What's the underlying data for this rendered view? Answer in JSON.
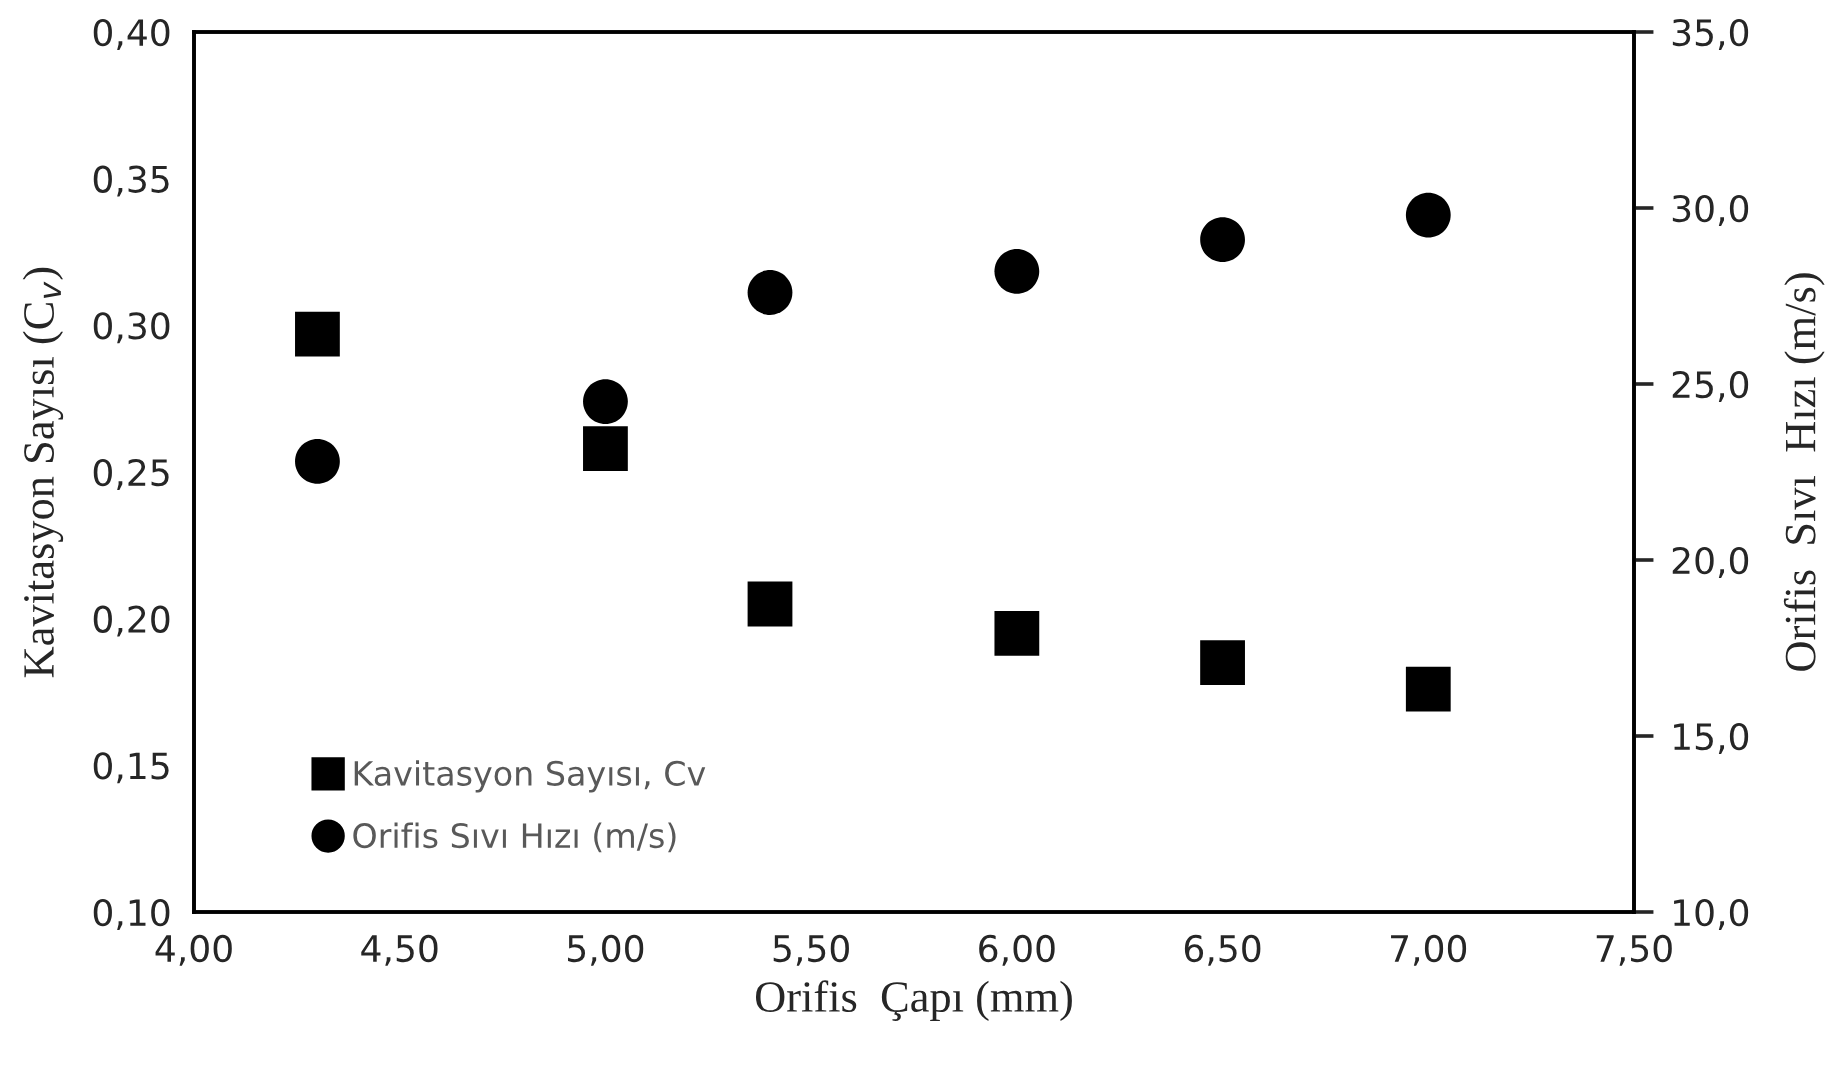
{
  "chart_data": {
    "type": "scatter",
    "xlabel": "Orifis  Çapı (mm)",
    "ylabel": "Kavitasyon Sayısı (C$_{v}$)",
    "y2label": "Orifis  Sıvı  Hızı (m/s)",
    "x": [
      4.3,
      5.0,
      5.4,
      6.0,
      6.5,
      7.0
    ],
    "series": [
      {
        "name": "Kavitasyon Sayısı, Cv",
        "color": "#000000",
        "marker": "square",
        "values": [
          0.297,
          0.258,
          0.205,
          0.195,
          0.185,
          0.176
        ]
      },
      {
        "name": "Orifis Sıvı Hızı (m/s)",
        "color": "#000000",
        "marker": "circle",
        "axis": "y2",
        "values": [
          22.8,
          24.5,
          27.6,
          28.2,
          29.1,
          29.8
        ]
      }
    ],
    "xlim": [
      4.0,
      7.5
    ],
    "xticks": [
      {
        "value": 4.0,
        "label": "4,00"
      },
      {
        "value": 4.5,
        "label": "4,50"
      },
      {
        "value": 5.0,
        "label": "5,00"
      },
      {
        "value": 5.5,
        "label": "5,50"
      },
      {
        "value": 6.0,
        "label": "6,00"
      },
      {
        "value": 6.5,
        "label": "6,50"
      },
      {
        "value": 7.0,
        "label": "7,00"
      },
      {
        "value": 7.5,
        "label": "7,50"
      }
    ],
    "ylim": [
      0.1,
      0.4
    ],
    "yticks": [
      {
        "value": 0.1,
        "label": "0,10"
      },
      {
        "value": 0.15,
        "label": "0,15"
      },
      {
        "value": 0.2,
        "label": "0,20"
      },
      {
        "value": 0.25,
        "label": "0,25"
      },
      {
        "value": 0.3,
        "label": "0,30"
      },
      {
        "value": 0.35,
        "label": "0,35"
      },
      {
        "value": 0.4,
        "label": "0,40"
      }
    ],
    "y2lim": [
      10,
      35
    ],
    "y2ticks": [
      {
        "value": 10,
        "label": "10,0"
      },
      {
        "value": 15,
        "label": "15,0"
      },
      {
        "value": 20,
        "label": "20,0"
      },
      {
        "value": 25,
        "label": "25,0"
      },
      {
        "value": 30,
        "label": "30,0"
      },
      {
        "value": 35,
        "label": "35,0"
      }
    ],
    "legend": "bottom left",
    "grid": false
  }
}
